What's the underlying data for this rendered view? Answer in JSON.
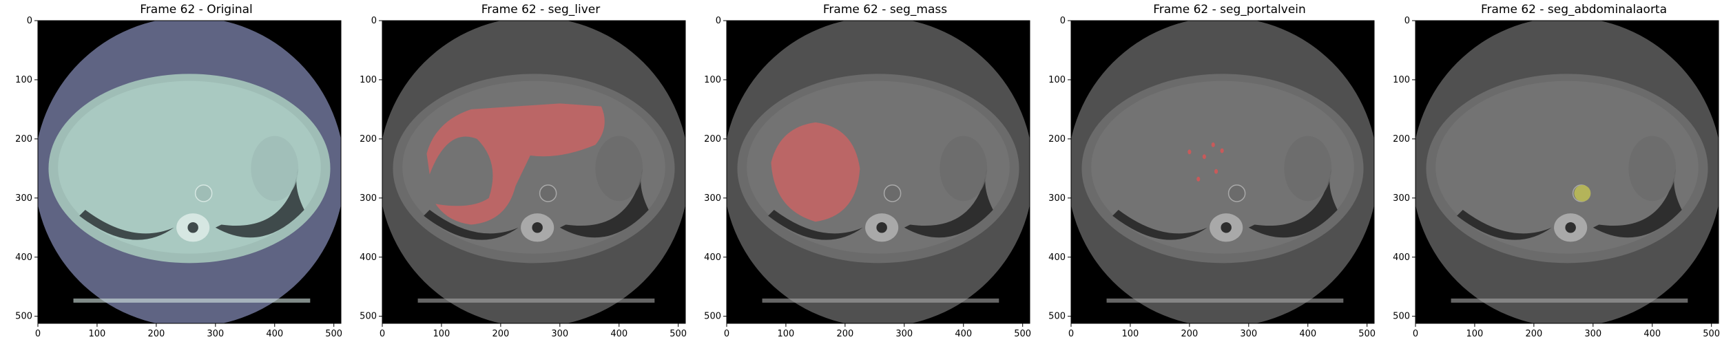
{
  "figure": {
    "x_ticks": [
      "0",
      "100",
      "200",
      "300",
      "400",
      "500"
    ],
    "y_ticks": [
      "0",
      "100",
      "200",
      "300",
      "400",
      "500"
    ],
    "x_tick_values": [
      0,
      100,
      200,
      300,
      400,
      500
    ],
    "y_tick_values": [
      0,
      100,
      200,
      300,
      400,
      500
    ],
    "image_extent": [
      0,
      512
    ],
    "panels": [
      {
        "title": "Frame 62 - Original",
        "view": "original",
        "overlay_color": null,
        "colors": {
          "outer": "#5f6483",
          "body": "#9fbdb6",
          "liver": "#a9c9c1",
          "bone": "#d6e7e2",
          "dark": "#3f4a4b"
        }
      },
      {
        "title": "Frame 62 - seg_liver",
        "view": "seg_liver",
        "overlay_color": "#c86464",
        "colors": {
          "outer": "#505050",
          "body": "#6b6b6b",
          "liver": "#737373",
          "bone": "#a9a9a9",
          "dark": "#2e2e2e"
        }
      },
      {
        "title": "Frame 62 - seg_mass",
        "view": "seg_mass",
        "overlay_color": "#c86464",
        "colors": {
          "outer": "#505050",
          "body": "#6b6b6b",
          "liver": "#737373",
          "bone": "#a9a9a9",
          "dark": "#2e2e2e"
        }
      },
      {
        "title": "Frame 62 - seg_portalvein",
        "view": "seg_portalvein",
        "overlay_color": "#c85a5a",
        "colors": {
          "outer": "#505050",
          "body": "#6b6b6b",
          "liver": "#737373",
          "bone": "#a9a9a9",
          "dark": "#2e2e2e"
        }
      },
      {
        "title": "Frame 62 - seg_abdominalaorta",
        "view": "seg_abdominalaorta",
        "overlay_color": "#b4b45a",
        "colors": {
          "outer": "#505050",
          "body": "#6b6b6b",
          "liver": "#737373",
          "bone": "#a9a9a9",
          "dark": "#2e2e2e"
        }
      }
    ]
  }
}
